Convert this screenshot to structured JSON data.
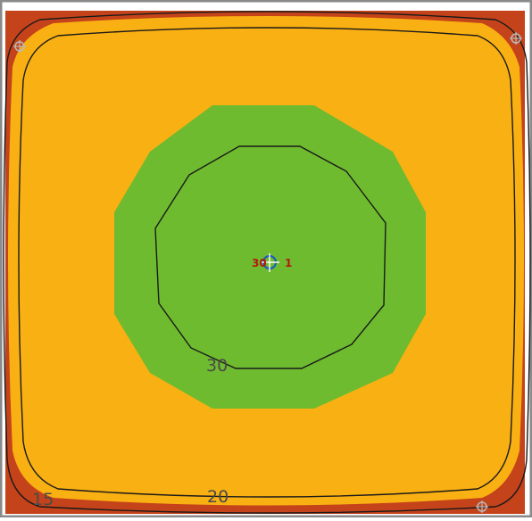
{
  "colors": {
    "outer_zone": "#c5431a",
    "middle_zone": "#f9b012",
    "inner_zone": "#6fbb2f",
    "contour_line": "#1a1a1a",
    "frame_border": "#8a8a8a",
    "center_marker_ring": "#1f5db8",
    "center_marker_text": "#b5170f",
    "corner_marker": "#b9b9b9"
  },
  "contour_labels": {
    "inner": "30",
    "middle": "20",
    "outer": "15"
  },
  "center_marker": {
    "label_left": "30",
    "label_right": "1"
  },
  "icons": {
    "corner_markers": "cross-target-icon",
    "center_marker": "crosshair-circle-icon"
  }
}
